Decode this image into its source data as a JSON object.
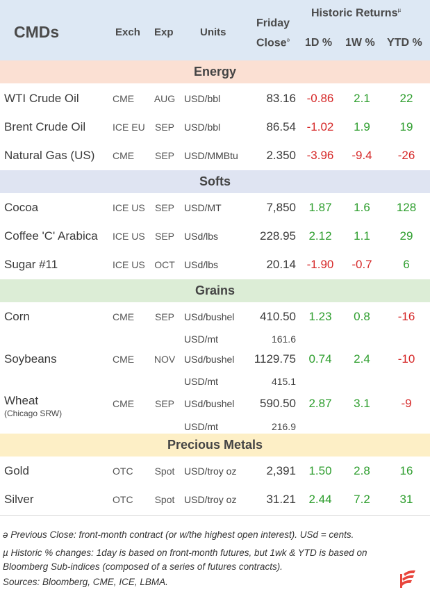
{
  "header": {
    "title": "CMDs",
    "exch": "Exch",
    "exp": "Exp",
    "units": "Units",
    "close_line1": "Friday",
    "close_line2": "Close",
    "close_mark": "ə",
    "historic": "Historic Returns",
    "historic_mark": "µ",
    "d1": "1D %",
    "w1": "1W %",
    "ytd": "YTD %"
  },
  "colors": {
    "header_bg": "#dde8f4",
    "energy": "#fbe0d3",
    "softs": "#dfe4f2",
    "grains": "#dcedd6",
    "precious": "#fdefc6",
    "positive": "#2e9e2e",
    "negative": "#d62828"
  },
  "sections": {
    "energy": "Energy",
    "softs": "Softs",
    "grains": "Grains",
    "precious": "Precious Metals"
  },
  "rows": {
    "wti": {
      "name": "WTI Crude Oil",
      "exch": "CME",
      "exp": "AUG",
      "units": "USD/bbl",
      "close": "83.16",
      "d1": "-0.86",
      "w1": "2.1",
      "ytd": "22"
    },
    "brent": {
      "name": "Brent Crude Oil",
      "exch": "ICE EU",
      "exp": "SEP",
      "units": "USD/bbl",
      "close": "86.54",
      "d1": "-1.02",
      "w1": "1.9",
      "ytd": "19"
    },
    "natgas": {
      "name": "Natural Gas (US)",
      "exch": "CME",
      "exp": "SEP",
      "units": "USD/MMBtu",
      "close": "2.350",
      "d1": "-3.96",
      "w1": "-9.4",
      "ytd": "-26"
    },
    "cocoa": {
      "name": "Cocoa",
      "exch": "ICE US",
      "exp": "SEP",
      "units": "USD/MT",
      "close": "7,850",
      "d1": "1.87",
      "w1": "1.6",
      "ytd": "128"
    },
    "coffee": {
      "name": "Coffee 'C' Arabica",
      "exch": "ICE US",
      "exp": "SEP",
      "units": "USd/lbs",
      "close": "228.95",
      "d1": "2.12",
      "w1": "1.1",
      "ytd": "29"
    },
    "sugar": {
      "name": "Sugar #11",
      "exch": "ICE US",
      "exp": "OCT",
      "units": "USd/lbs",
      "close": "20.14",
      "d1": "-1.90",
      "w1": "-0.7",
      "ytd": "6"
    },
    "corn": {
      "name": "Corn",
      "exch": "CME",
      "exp": "SEP",
      "units": "USd/bushel",
      "close": "410.50",
      "d1": "1.23",
      "w1": "0.8",
      "ytd": "-16",
      "sub_units": "USD/mt",
      "sub_close": "161.6"
    },
    "soy": {
      "name": "Soybeans",
      "exch": "CME",
      "exp": "NOV",
      "units": "USd/bushel",
      "close": "1129.75",
      "d1": "0.74",
      "w1": "2.4",
      "ytd": "-10",
      "sub_units": "USD/mt",
      "sub_close": "415.1"
    },
    "wheat": {
      "name": "Wheat",
      "name_sub": "(Chicago SRW)",
      "exch": "CME",
      "exp": "SEP",
      "units": "USd/bushel",
      "close": "590.50",
      "d1": "2.87",
      "w1": "3.1",
      "ytd": "-9",
      "sub_units": "USD/mt",
      "sub_close": "216.9"
    },
    "gold": {
      "name": "Gold",
      "exch": "OTC",
      "exp": "Spot",
      "units": "USD/troy oz",
      "close": "2,391",
      "d1": "1.50",
      "w1": "2.8",
      "ytd": "16"
    },
    "silver": {
      "name": "Silver",
      "exch": "OTC",
      "exp": "Spot",
      "units": "USD/troy oz",
      "close": "31.21",
      "d1": "2.44",
      "w1": "7.2",
      "ytd": "31"
    }
  },
  "footnotes": {
    "close_note": "ə Previous Close: front-month contract (or w/the highest open interest). USd = cents.",
    "hist_note_1": "µ Historic % changes: 1day is based on front-month futures, but 1wk & YTD is based on",
    "hist_note_2": "Bloomberg Sub-indices (composed of a series of futures contracts).",
    "sources": "Sources: Bloomberg, CME, ICE, LBMA."
  },
  "logo_icon": "brand-stripes-icon"
}
